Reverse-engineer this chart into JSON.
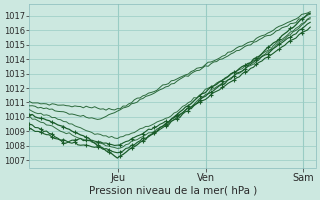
{
  "bg_color": "#cce8e0",
  "grid_color": "#99ccc4",
  "line_color": "#1a5c2a",
  "marker_color": "#1a5c2a",
  "xlabel_text": "Pression niveau de la mer( hPa )",
  "x_tick_labels": [
    "Jeu",
    "Ven",
    "Sam"
  ],
  "x_tick_positions": [
    0.315,
    0.63,
    0.975
  ],
  "ylim": [
    1006.5,
    1017.8
  ],
  "yticks": [
    1007,
    1008,
    1009,
    1010,
    1011,
    1012,
    1013,
    1014,
    1015,
    1016,
    1017
  ],
  "xlim": [
    0,
    1.02
  ]
}
